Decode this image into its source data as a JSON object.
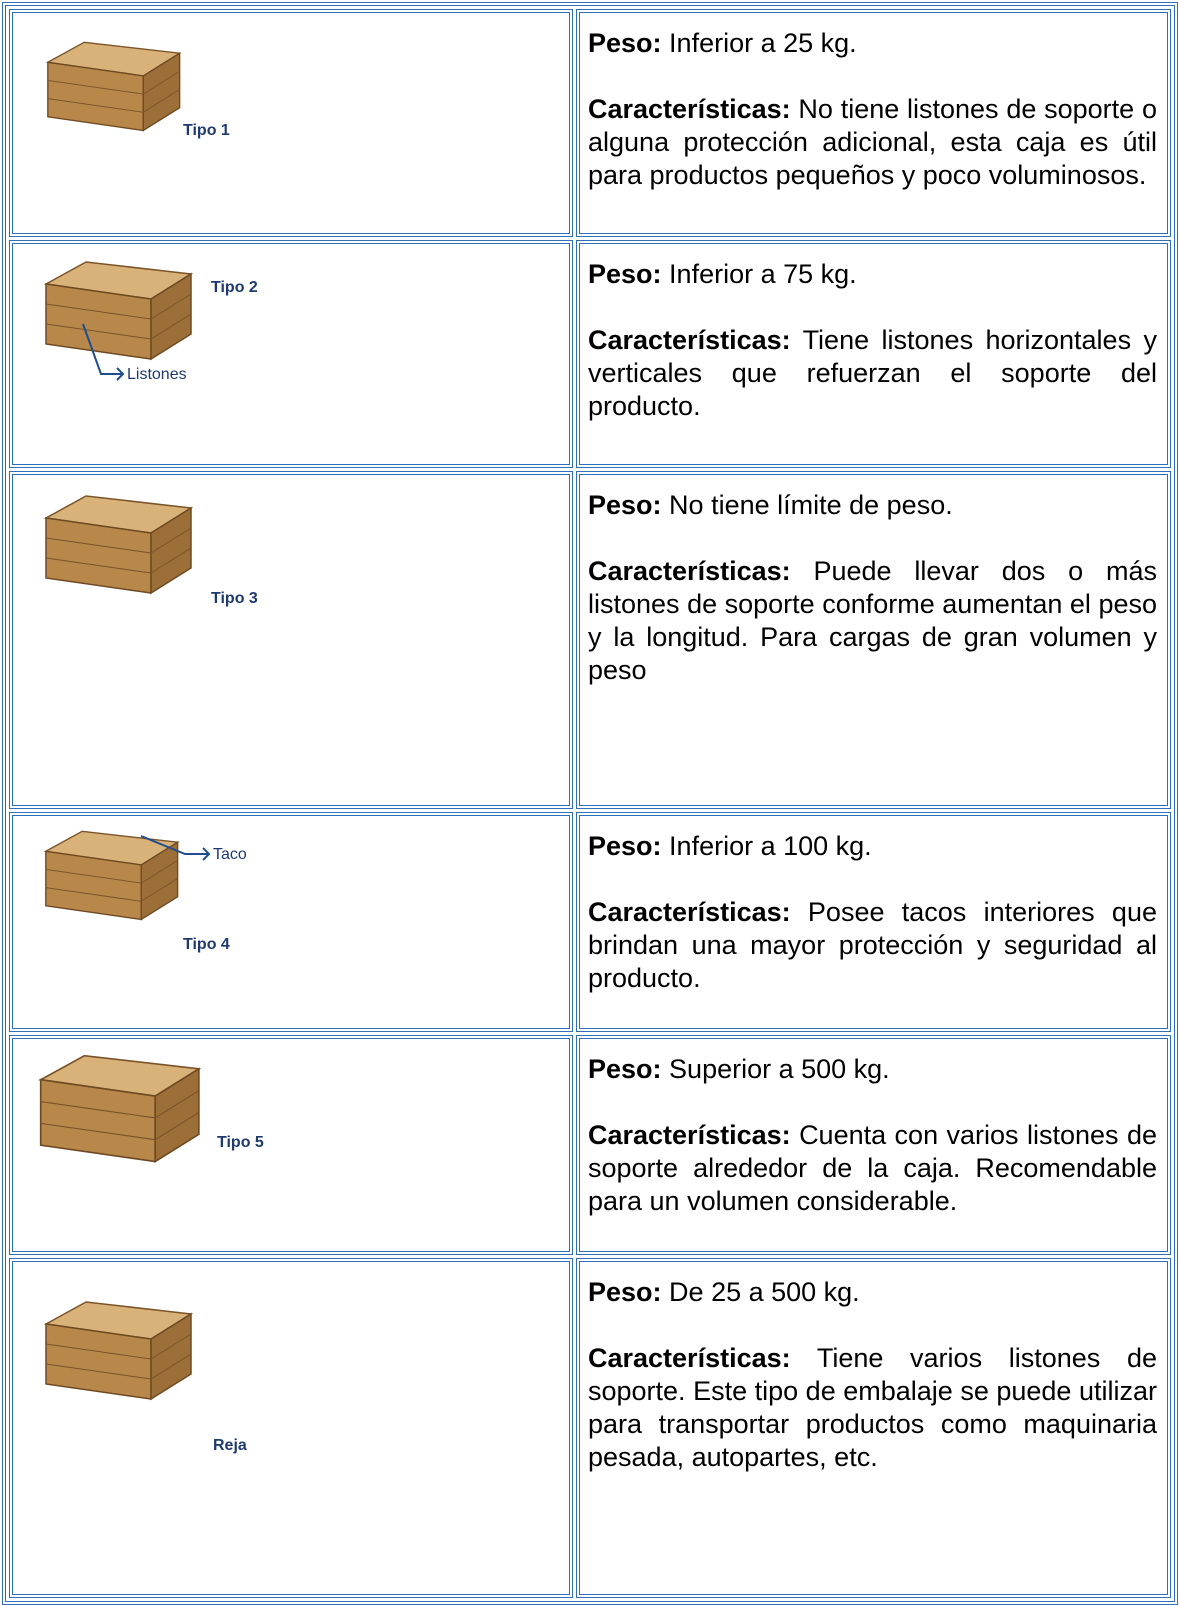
{
  "rows": [
    {
      "labels": [
        "Tipo 1"
      ],
      "weight_label": "Peso:",
      "weight": "Inferior a 25 kg.",
      "features_label": "Características:",
      "features": "No tiene listones de soporte o alguna protección adicional, esta caja es útil para productos pequeños y poco voluminosos."
    },
    {
      "labels": [
        "Tipo 2",
        "Listones"
      ],
      "weight_label": "Peso:",
      "weight": "Inferior a 75 kg.",
      "features_label": "Características:",
      "features": "Tiene listones horizontales y verticales que refuerzan el soporte del producto."
    },
    {
      "labels": [
        "Tipo 3"
      ],
      "weight_label": "Peso:",
      "weight": "No tiene límite de peso.",
      "features_label": "Características:",
      "features": "Puede llevar dos o más listones de soporte conforme aumentan el peso y la longitud. Para cargas de gran volumen y peso"
    },
    {
      "labels": [
        "Taco",
        "Tipo 4"
      ],
      "weight_label": "Peso:",
      "weight": "Inferior a 100 kg.",
      "features_label": "Características:",
      "features": "Posee tacos interiores que brindan una mayor protección y seguridad al producto."
    },
    {
      "labels": [
        "Tipo 5"
      ],
      "weight_label": "Peso:",
      "weight": "Superior a 500 kg.",
      "features_label": "Características:",
      "features": "Cuenta con varios listones de soporte alrededor de la caja. Recomendable para un volumen considerable."
    },
    {
      "labels": [
        "Reja"
      ],
      "weight_label": "Peso:",
      "weight": "De 25 a 500 kg.",
      "features_label": "Características:",
      "features": "Tiene varios listones de soporte. Este tipo de embalaje se puede utilizar para transportar productos como maquinaria pesada, autopartes, etc."
    }
  ]
}
